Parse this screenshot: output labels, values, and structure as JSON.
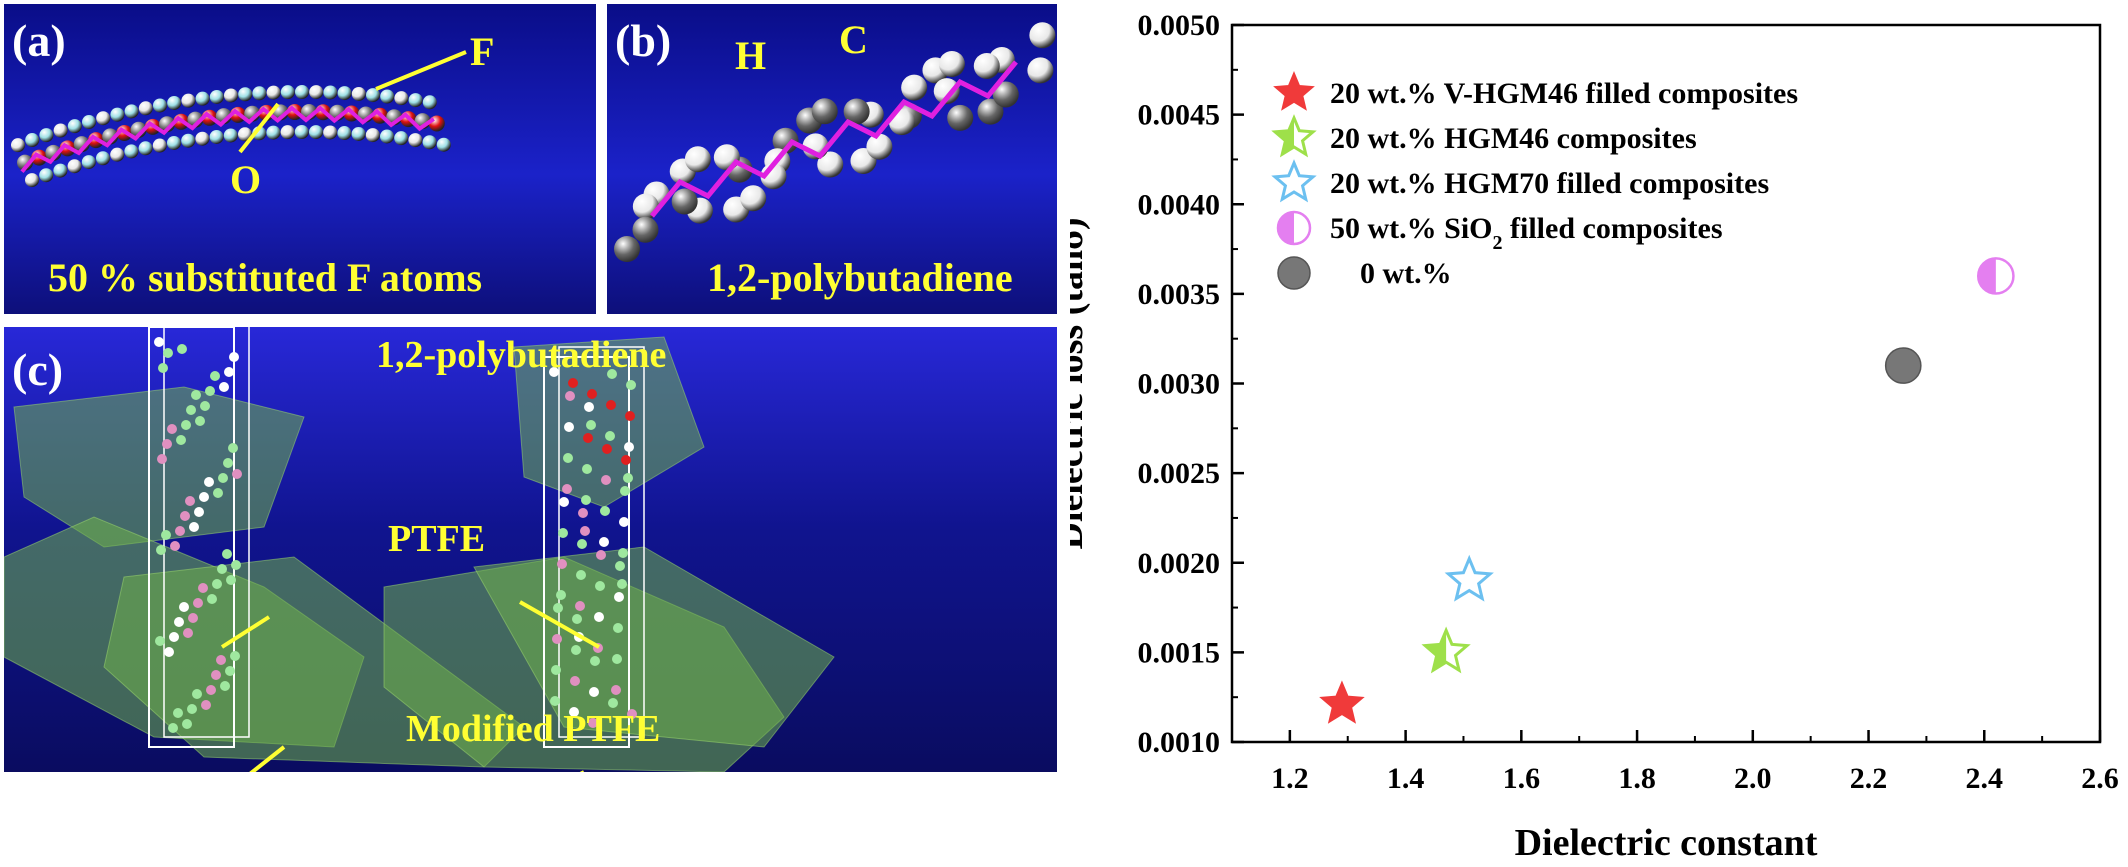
{
  "panels": {
    "a": {
      "label": "(a)",
      "caption": "50 % substituted F atoms",
      "atom_labels": [
        "F",
        "O"
      ]
    },
    "b": {
      "label": "(b)",
      "caption": "1,2-polybutadiene",
      "atom_labels": [
        "H",
        "C"
      ]
    },
    "c": {
      "label": "(c)",
      "labels": [
        "1,2-polybutadiene",
        "PTFE",
        "Modified PTFE"
      ]
    }
  },
  "colors": {
    "panel_bg": "#1b22c9",
    "label_yellow": "#ffff33",
    "atom_F": "#9fe0e6",
    "atom_C": "#7a7a7a",
    "atom_O": "#e01010",
    "atom_H": "#e8e8e8",
    "bond_magenta": "#e020e0",
    "volume_green": "#6fb04a"
  },
  "chart_data": {
    "type": "scatter",
    "xlabel": "Dielectric constant",
    "ylabel": "Dielectric loss (tanδ)",
    "xlim": [
      1.1,
      2.6
    ],
    "ylim": [
      0.001,
      0.005
    ],
    "xticks": [
      "1.2",
      "1.4",
      "1.6",
      "1.8",
      "2.0",
      "2.2",
      "2.4",
      "2.6"
    ],
    "yticks": [
      "0.0010",
      "0.0015",
      "0.0020",
      "0.0025",
      "0.0030",
      "0.0035",
      "0.0040",
      "0.0045",
      "0.0050"
    ],
    "grid": false,
    "legend_position": "top-left",
    "series": [
      {
        "name": "20 wt.% V-HGM46 filled composites",
        "marker": "star-filled",
        "color": "#f03a3a",
        "x": 1.29,
        "y": 0.00121
      },
      {
        "name": "20 wt.% HGM46 composites",
        "marker": "star-half",
        "color": "#9ee04a",
        "x": 1.47,
        "y": 0.0015
      },
      {
        "name": "20 wt.% HGM70 filled composites",
        "marker": "star-open",
        "color": "#6cc0f0",
        "x": 1.51,
        "y": 0.0019
      },
      {
        "name_prefix": "50 wt.% SiO",
        "name_sub": "2",
        "name_suffix": " filled composites",
        "marker": "circle-half",
        "color": "#e47ff0",
        "x": 2.42,
        "y": 0.0036
      },
      {
        "name": "0 wt.%",
        "marker": "circle-filled",
        "color": "#777777",
        "x": 2.26,
        "y": 0.0031
      }
    ]
  }
}
